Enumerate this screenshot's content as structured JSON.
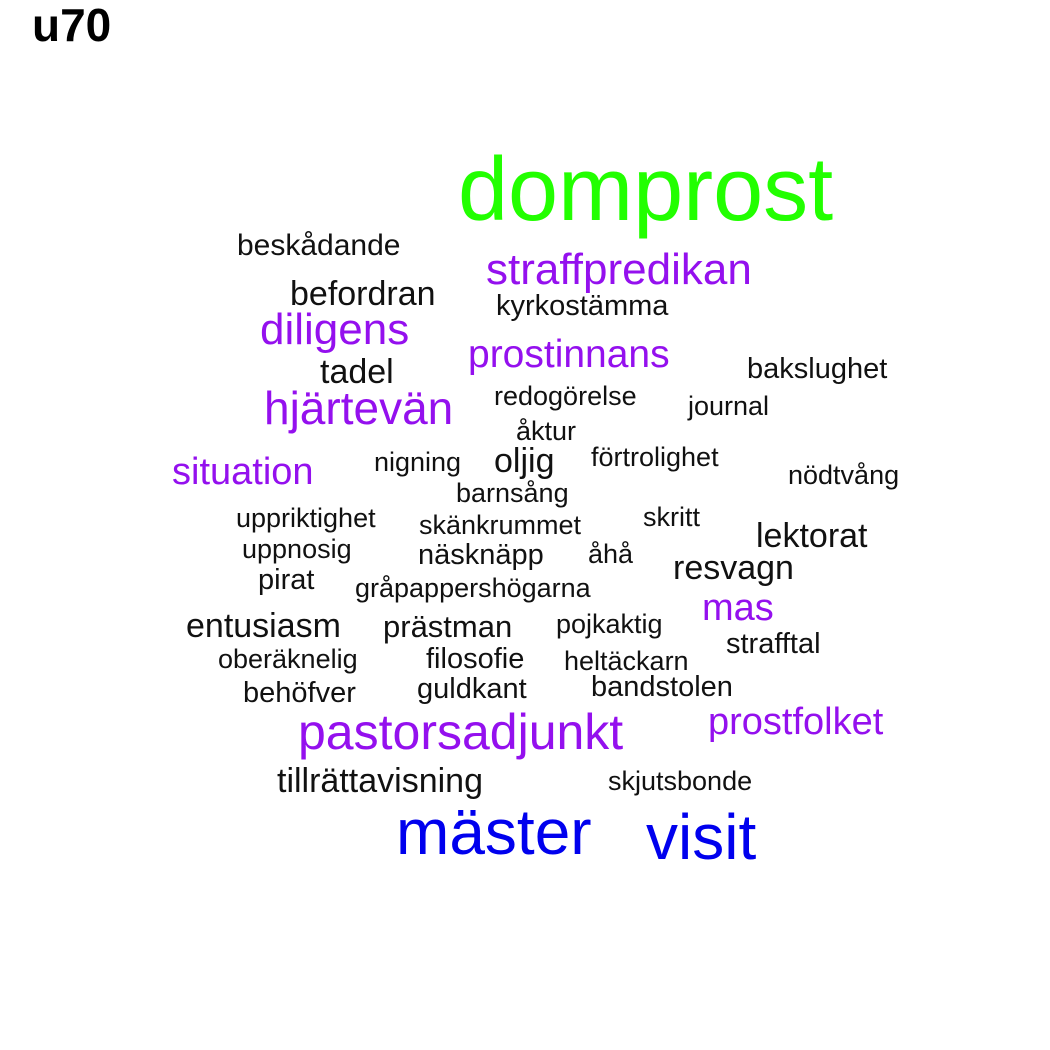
{
  "title": "u70",
  "colors": {
    "green": "#22ff00",
    "blue": "#0000ee",
    "purple": "#9410ee",
    "black": "#111111"
  },
  "words": [
    {
      "text": "domprost",
      "color": "green"
    },
    {
      "text": "mäster",
      "color": "blue"
    },
    {
      "text": "visit",
      "color": "blue"
    },
    {
      "text": "pastorsadjunkt",
      "color": "purple"
    },
    {
      "text": "straffpredikan",
      "color": "purple"
    },
    {
      "text": "hjärtevän",
      "color": "purple"
    },
    {
      "text": "diligens",
      "color": "purple"
    },
    {
      "text": "prostinnans",
      "color": "purple"
    },
    {
      "text": "situation",
      "color": "purple"
    },
    {
      "text": "prostfolket",
      "color": "purple"
    },
    {
      "text": "mas",
      "color": "purple"
    },
    {
      "text": "beskådande",
      "color": "black"
    },
    {
      "text": "befordran",
      "color": "black"
    },
    {
      "text": "kyrkostämma",
      "color": "black"
    },
    {
      "text": "tadel",
      "color": "black"
    },
    {
      "text": "bakslughet",
      "color": "black"
    },
    {
      "text": "redogörelse",
      "color": "black"
    },
    {
      "text": "journal",
      "color": "black"
    },
    {
      "text": "åktur",
      "color": "black"
    },
    {
      "text": "nigning",
      "color": "black"
    },
    {
      "text": "oljig",
      "color": "black"
    },
    {
      "text": "förtrolighet",
      "color": "black"
    },
    {
      "text": "nödtvång",
      "color": "black"
    },
    {
      "text": "barnsång",
      "color": "black"
    },
    {
      "text": "uppriktighet",
      "color": "black"
    },
    {
      "text": "skänkrummet",
      "color": "black"
    },
    {
      "text": "skritt",
      "color": "black"
    },
    {
      "text": "lektorat",
      "color": "black"
    },
    {
      "text": "uppnosig",
      "color": "black"
    },
    {
      "text": "näsknäpp",
      "color": "black"
    },
    {
      "text": "åhå",
      "color": "black"
    },
    {
      "text": "resvagn",
      "color": "black"
    },
    {
      "text": "pirat",
      "color": "black"
    },
    {
      "text": "gråpappershögarna",
      "color": "black"
    },
    {
      "text": "entusiasm",
      "color": "black"
    },
    {
      "text": "prästman",
      "color": "black"
    },
    {
      "text": "pojkaktig",
      "color": "black"
    },
    {
      "text": "strafftal",
      "color": "black"
    },
    {
      "text": "oberäknelig",
      "color": "black"
    },
    {
      "text": "filosofie",
      "color": "black"
    },
    {
      "text": "heltäckarn",
      "color": "black"
    },
    {
      "text": "behöfver",
      "color": "black"
    },
    {
      "text": "guldkant",
      "color": "black"
    },
    {
      "text": "bandstolen",
      "color": "black"
    },
    {
      "text": "tillrättavisning",
      "color": "black"
    },
    {
      "text": "skjutsbonde",
      "color": "black"
    }
  ]
}
